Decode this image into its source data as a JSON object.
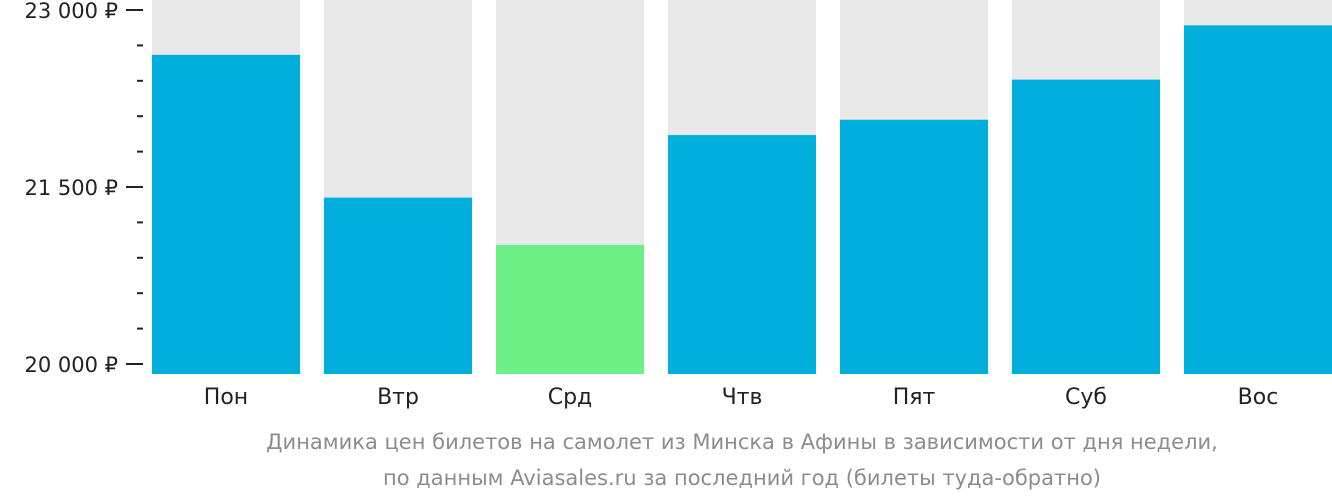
{
  "chart_data": {
    "type": "bar",
    "categories": [
      "Пон",
      "Втр",
      "Срд",
      "Чтв",
      "Пят",
      "Суб",
      "Вос"
    ],
    "values": [
      22620,
      21410,
      21010,
      21940,
      22070,
      22410,
      22870
    ],
    "highlight_index": 2,
    "ylim": [
      20000,
      23000
    ],
    "yticks": [
      20000,
      21500,
      23000
    ],
    "ytick_labels": [
      "20 000 ₽",
      "21 500 ₽",
      "23 000 ₽"
    ],
    "minor_ticks_between": 4,
    "grid": false,
    "colors": {
      "bar": "#00afdb",
      "highlight": "#6cf085",
      "track": "#e8e8e8",
      "axis": "#222222"
    },
    "caption": [
      "Динамика цен билетов на самолет из Минска в Афины в зависимости от дня недели,",
      "по данным Aviasales.ru за последний год (билеты туда-обратно)"
    ]
  }
}
